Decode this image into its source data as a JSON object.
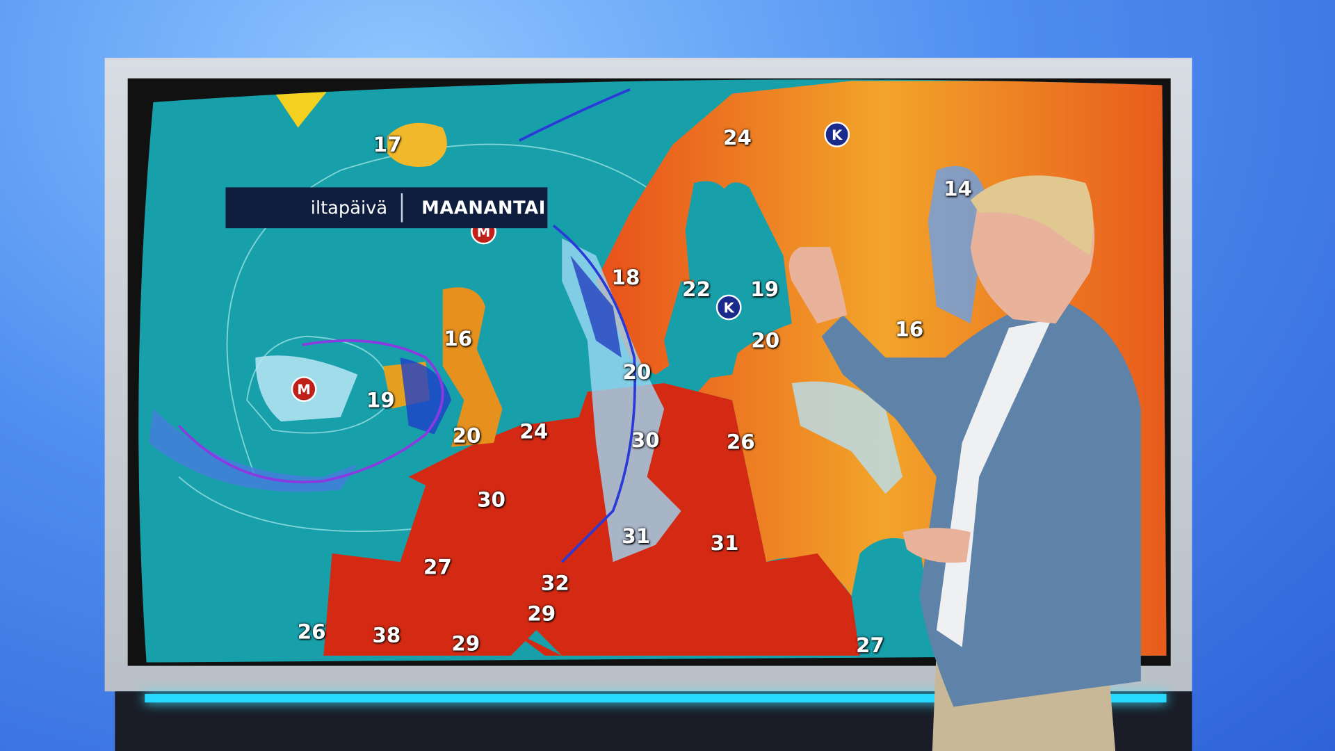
{
  "caption": {
    "period": "iltapäivä",
    "day": "MAANANTAI"
  },
  "colors": {
    "sea": "#18a0aa",
    "hot": "#d42a14",
    "warm": "#f0a020",
    "cold_front": "#2a3ad8",
    "occluded_front": "#8a3ae0",
    "led": "#27d9ff"
  },
  "temperatures": [
    {
      "region": "Iceland",
      "value": "17"
    },
    {
      "region": "Northern Finland",
      "value": "24"
    },
    {
      "region": "Northwest Russia",
      "value": "14"
    },
    {
      "region": "Norway",
      "value": "18"
    },
    {
      "region": "Stockholm",
      "value": "22"
    },
    {
      "region": "Helsinki",
      "value": "19"
    },
    {
      "region": "Estonia",
      "value": "20"
    },
    {
      "region": "Scotland",
      "value": "16"
    },
    {
      "region": "Moscow",
      "value": "16"
    },
    {
      "region": "Denmark",
      "value": "20"
    },
    {
      "region": "Ireland",
      "value": "19"
    },
    {
      "region": "London",
      "value": "20"
    },
    {
      "region": "Benelux",
      "value": "24"
    },
    {
      "region": "Berlin",
      "value": "30"
    },
    {
      "region": "Poland",
      "value": "26"
    },
    {
      "region": "Paris",
      "value": "30"
    },
    {
      "region": "Vienna",
      "value": "31"
    },
    {
      "region": "Hungary",
      "value": "31"
    },
    {
      "region": "Bordeaux",
      "value": "27"
    },
    {
      "region": "Switzerland",
      "value": "32"
    },
    {
      "region": "Nice",
      "value": "29"
    },
    {
      "region": "Portugal",
      "value": "26"
    },
    {
      "region": "Madrid",
      "value": "38"
    },
    {
      "region": "Barcelona",
      "value": "29"
    },
    {
      "region": "Black Sea",
      "value": "27"
    }
  ],
  "pressure_centers": [
    {
      "type": "high",
      "letter": "K",
      "color": "#1a2a8a"
    },
    {
      "type": "high",
      "letter": "K",
      "color": "#1a2a8a"
    },
    {
      "type": "low",
      "letter": "M",
      "color": "#c0201a"
    },
    {
      "type": "low",
      "letter": "M",
      "color": "#c0201a"
    }
  ]
}
